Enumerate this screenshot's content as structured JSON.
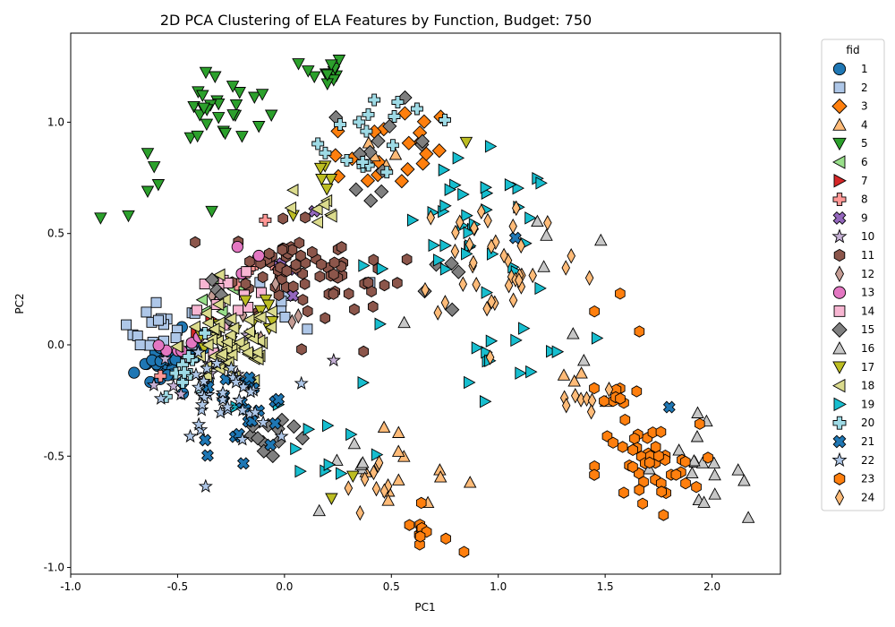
{
  "chart_data": {
    "type": "scatter",
    "title": "2D PCA Clustering of ELA Features by Function, Budget: 750",
    "xlabel": "PC1",
    "ylabel": "PC2",
    "xlim": [
      -1.0,
      2.32
    ],
    "ylim": [
      -1.03,
      1.4
    ],
    "xticks": [
      "-1.0",
      "-0.5",
      "0.0",
      "0.5",
      "1.0",
      "1.5",
      "2.0"
    ],
    "xtick_values": [
      -1.0,
      -0.5,
      0.0,
      0.5,
      1.0,
      1.5,
      2.0
    ],
    "yticks": [
      "-1.0",
      "-0.5",
      "0.0",
      "0.5",
      "1.0"
    ],
    "ytick_values": [
      -1.0,
      -0.5,
      0.0,
      0.5,
      1.0
    ],
    "grid": false,
    "legend_title": "fid",
    "legend_position": "outside-right",
    "series": [
      {
        "name": "1",
        "color": "#1f77b4",
        "marker": "circle",
        "centers": [
          [
            -0.58,
            -0.1,
            0.06,
            18
          ],
          [
            -0.45,
            -0.05,
            0.08,
            14
          ]
        ]
      },
      {
        "name": "2",
        "color": "#aec7e8",
        "marker": "square",
        "centers": [
          [
            -0.55,
            0.05,
            0.08,
            16
          ],
          [
            0.05,
            0.2,
            0.08,
            6
          ]
        ],
        "points": [
          [
            -0.74,
            0.09
          ],
          [
            -0.6,
            0.19
          ],
          [
            -0.59,
            0.11
          ],
          [
            0.4,
            0.28
          ]
        ]
      },
      {
        "name": "3",
        "color": "#ff7f0e",
        "marker": "diamond",
        "centers": [
          [
            0.55,
            0.88,
            0.12,
            14
          ],
          [
            0.3,
            0.8,
            0.08,
            6
          ]
        ]
      },
      {
        "name": "4",
        "color": "#ffbb78",
        "marker": "triangle-up",
        "centers": [
          [
            0.55,
            -0.55,
            0.15,
            12
          ],
          [
            0.4,
            0.8,
            0.08,
            4
          ],
          [
            1.4,
            -0.2,
            0.1,
            4
          ]
        ]
      },
      {
        "name": "5",
        "color": "#2ca02c",
        "marker": "triangle-down",
        "centers": [
          [
            -0.25,
            1.05,
            0.1,
            22
          ],
          [
            0.18,
            1.22,
            0.05,
            14
          ],
          [
            -0.4,
            1.1,
            0.05,
            6
          ]
        ],
        "points": [
          [
            -0.86,
            0.57
          ],
          [
            -0.73,
            0.58
          ],
          [
            -0.64,
            0.86
          ],
          [
            -0.61,
            0.8
          ],
          [
            -0.59,
            0.72
          ],
          [
            -0.64,
            0.69
          ],
          [
            -0.34,
            0.6
          ]
        ]
      },
      {
        "name": "6",
        "color": "#98df8a",
        "marker": "triangle-left",
        "centers": [
          [
            -0.3,
            0.22,
            0.08,
            8
          ]
        ]
      },
      {
        "name": "7",
        "color": "#d62728",
        "marker": "triangle-right",
        "centers": [
          [
            -0.4,
            0.1,
            0.05,
            2
          ]
        ]
      },
      {
        "name": "8",
        "color": "#ff9896",
        "marker": "plus",
        "centers": [
          [
            -0.15,
            0.35,
            0.08,
            6
          ]
        ],
        "points": [
          [
            -0.58,
            -0.14
          ],
          [
            -0.09,
            0.56
          ]
        ]
      },
      {
        "name": "9",
        "color": "#9467bd",
        "marker": "x",
        "centers": [
          [
            0.05,
            0.3,
            0.08,
            4
          ]
        ],
        "points": [
          [
            0.14,
            0.6
          ]
        ]
      },
      {
        "name": "10",
        "color": "#c5b0d5",
        "marker": "star",
        "centers": [
          [
            -0.35,
            -0.1,
            0.12,
            14
          ]
        ],
        "points": [
          [
            0.23,
            -0.07
          ]
        ]
      },
      {
        "name": "11",
        "color": "#8c564b",
        "marker": "hexagon",
        "centers": [
          [
            0.0,
            0.35,
            0.12,
            50
          ],
          [
            0.25,
            0.3,
            0.1,
            14
          ],
          [
            0.45,
            0.3,
            0.06,
            6
          ]
        ],
        "points": [
          [
            0.37,
            -0.03
          ],
          [
            0.19,
            0.12
          ],
          [
            0.08,
            -0.02
          ]
        ]
      },
      {
        "name": "12",
        "color": "#c49c94",
        "marker": "diamond-thin",
        "centers": [
          [
            -0.05,
            0.2,
            0.1,
            6
          ]
        ]
      },
      {
        "name": "13",
        "color": "#e377c2",
        "marker": "circle",
        "centers": [
          [
            -0.5,
            0.02,
            0.06,
            6
          ]
        ],
        "points": [
          [
            -0.22,
            0.44
          ],
          [
            -0.12,
            0.4
          ],
          [
            -0.2,
            0.32
          ]
        ]
      },
      {
        "name": "14",
        "color": "#f7b6d2",
        "marker": "square",
        "centers": [
          [
            -0.25,
            0.18,
            0.08,
            14
          ]
        ]
      },
      {
        "name": "15",
        "color": "#7f7f7f",
        "marker": "diamond",
        "centers": [
          [
            -0.05,
            -0.4,
            0.1,
            12
          ],
          [
            0.45,
            0.9,
            0.12,
            12
          ],
          [
            0.8,
            0.25,
            0.1,
            5
          ],
          [
            -0.3,
            0.2,
            0.06,
            4
          ]
        ]
      },
      {
        "name": "16",
        "color": "#c7c7c7",
        "marker": "triangle-up",
        "centers": [
          [
            1.9,
            -0.53,
            0.12,
            16
          ],
          [
            1.3,
            0.45,
            0.1,
            4
          ],
          [
            0.3,
            -0.6,
            0.1,
            6
          ]
        ],
        "points": [
          [
            2.15,
            -0.61
          ],
          [
            0.56,
            0.1
          ],
          [
            1.35,
            0.05
          ],
          [
            1.4,
            -0.07
          ]
        ]
      },
      {
        "name": "17",
        "color": "#bcbd22",
        "marker": "triangle-down",
        "centers": [
          [
            0.2,
            0.7,
            0.08,
            6
          ],
          [
            -0.2,
            0.1,
            0.12,
            12
          ]
        ],
        "points": [
          [
            0.22,
            -0.69
          ],
          [
            0.32,
            -0.59
          ],
          [
            0.85,
            0.91
          ]
        ]
      },
      {
        "name": "18",
        "color": "#dbdb8d",
        "marker": "triangle-left",
        "centers": [
          [
            -0.25,
            0.0,
            0.12,
            60
          ],
          [
            0.15,
            0.6,
            0.08,
            8
          ]
        ]
      },
      {
        "name": "19",
        "color": "#17becf",
        "marker": "triangle-right",
        "centers": [
          [
            0.9,
            0.5,
            0.2,
            40
          ],
          [
            1.1,
            -0.05,
            0.15,
            14
          ],
          [
            0.2,
            -0.4,
            0.15,
            12
          ]
        ]
      },
      {
        "name": "20",
        "color": "#9edae5",
        "marker": "plus",
        "centers": [
          [
            0.38,
            0.92,
            0.1,
            12
          ],
          [
            -0.42,
            -0.1,
            0.08,
            10
          ]
        ],
        "points": [
          [
            0.42,
            1.1
          ],
          [
            0.53,
            1.09
          ],
          [
            0.62,
            1.06
          ],
          [
            0.75,
            1.01
          ],
          [
            0.26,
            0.99
          ]
        ]
      },
      {
        "name": "21",
        "color": "#1f77b4",
        "marker": "x",
        "centers": [
          [
            -0.2,
            -0.3,
            0.12,
            22
          ]
        ],
        "points": [
          [
            1.08,
            0.48
          ],
          [
            1.8,
            -0.28
          ]
        ]
      },
      {
        "name": "22",
        "color": "#aec7e8",
        "marker": "star",
        "centers": [
          [
            -0.3,
            -0.25,
            0.12,
            36
          ]
        ]
      },
      {
        "name": "23",
        "color": "#ff7f0e",
        "marker": "hexagon",
        "centers": [
          [
            1.7,
            -0.55,
            0.12,
            44
          ],
          [
            1.55,
            -0.25,
            0.06,
            10
          ],
          [
            0.65,
            -0.85,
            0.06,
            10
          ]
        ],
        "points": [
          [
            1.66,
            0.06
          ],
          [
            1.57,
            0.23
          ],
          [
            1.45,
            0.15
          ],
          [
            0.84,
            -0.93
          ],
          [
            0.64,
            -0.71
          ]
        ]
      },
      {
        "name": "24",
        "color": "#ffbb78",
        "marker": "diamond-thin",
        "centers": [
          [
            1.0,
            0.4,
            0.2,
            40
          ],
          [
            1.4,
            -0.25,
            0.08,
            8
          ],
          [
            0.45,
            -0.65,
            0.08,
            10
          ]
        ]
      }
    ]
  }
}
